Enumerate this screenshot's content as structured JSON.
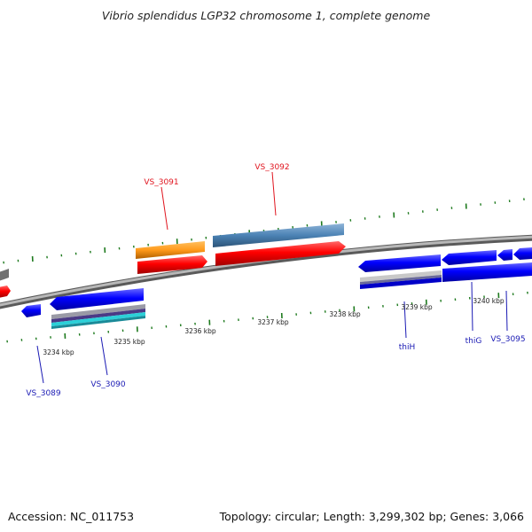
{
  "title": "Vibrio splendidus LGP32 chromosome 1, complete genome",
  "footer": {
    "accession": "Accession: NC_011753",
    "summary": "Topology: circular; Length: 3,299,302 bp; Genes: 3,066"
  },
  "scale_labels": [
    "3234 kbp",
    "3235 kbp",
    "3236 kbp",
    "3237 kbp",
    "3238 kbp",
    "3239 kbp",
    "3240 kbp"
  ],
  "gene_labels": {
    "top": [
      "VS_3091",
      "VS_3092"
    ],
    "bottom": [
      "VS_3089",
      "VS_3090",
      "thiH",
      "thiG",
      "VS_3095"
    ]
  },
  "colors": {
    "cds": "#ff0000",
    "cds_reverse": "#0000ff",
    "top_feature_orange": "#ff9a1a",
    "top_feature_steelblue": "#4b82b4",
    "backbone": "#8a8a8a",
    "tick": "#1e7a1e",
    "top_label": "#e0141e",
    "bottom_label": "#1a1ab4"
  }
}
